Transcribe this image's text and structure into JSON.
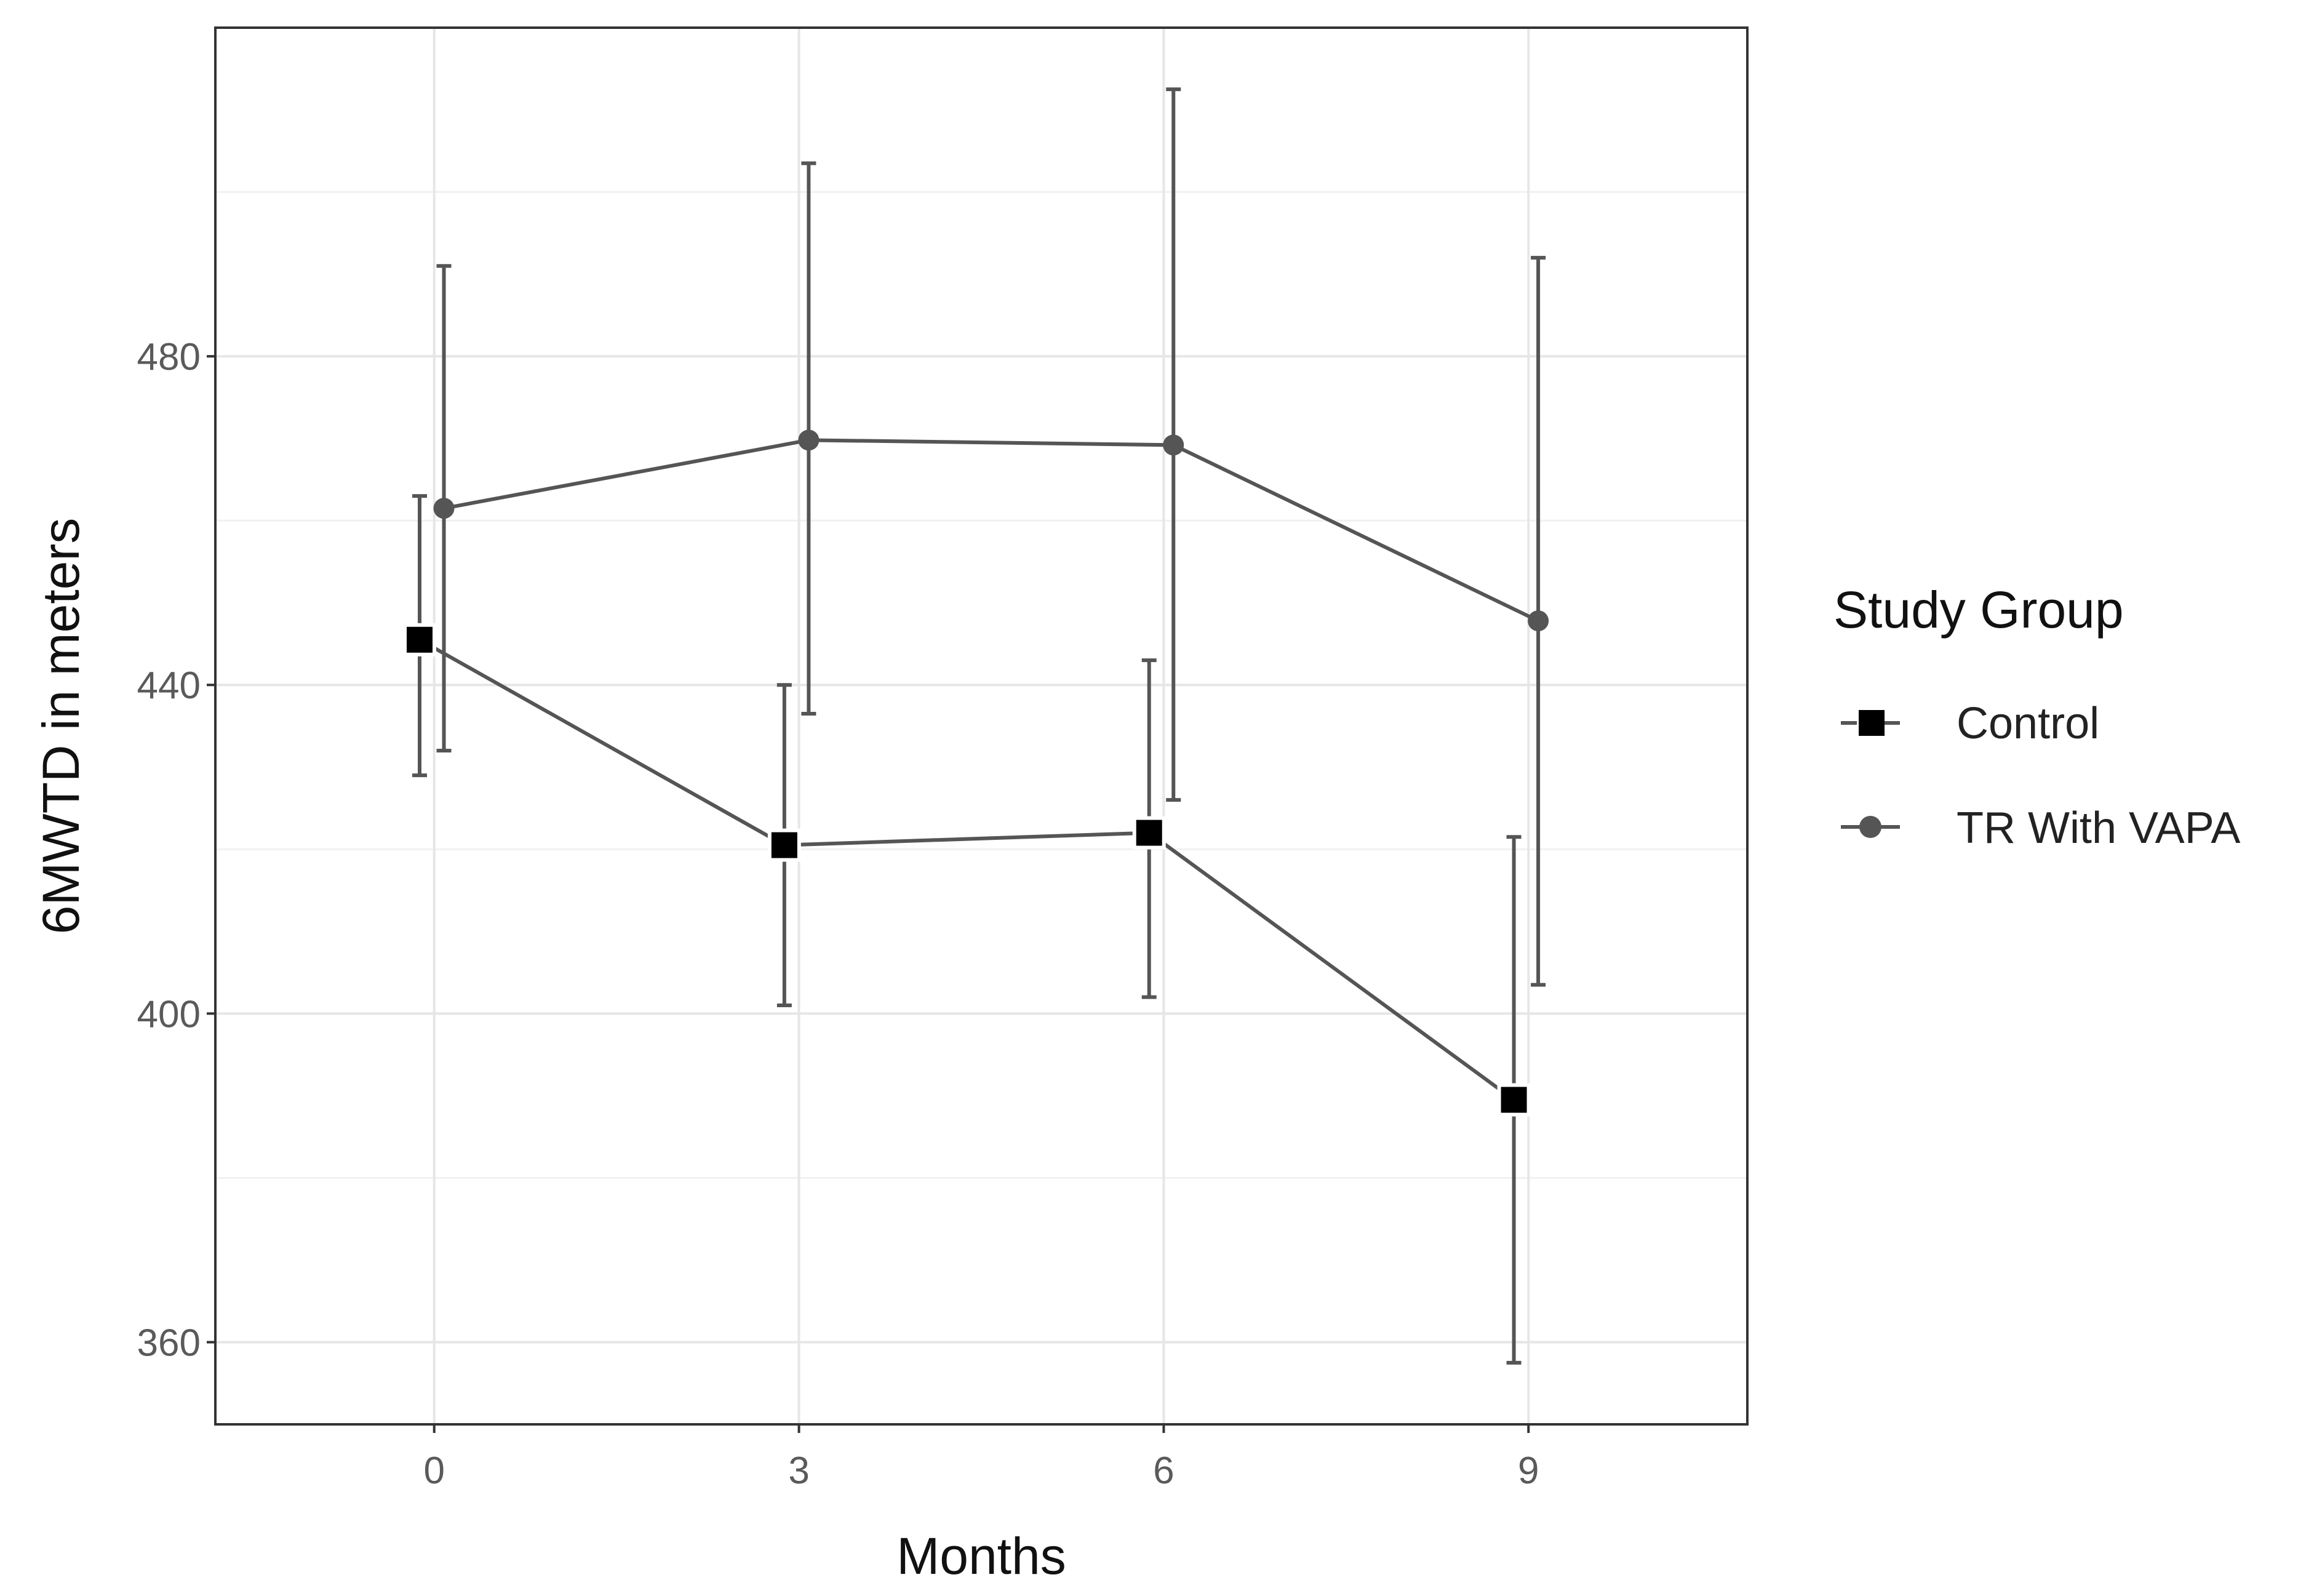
{
  "chart_data": {
    "type": "line",
    "title": "",
    "xlabel": "Months",
    "ylabel": "6MWTD in meters",
    "x": [
      0,
      3,
      6,
      9
    ],
    "x_tick_labels": [
      "0",
      "3",
      "6",
      "9"
    ],
    "y_ticks": [
      360,
      400,
      440,
      480
    ],
    "y_tick_labels": [
      "360",
      "400",
      "440",
      "480"
    ],
    "xlim": [
      -1.8,
      10.8
    ],
    "ylim": [
      350,
      520
    ],
    "grid": true,
    "legend": {
      "title": "Study Group",
      "position": "right"
    },
    "series": [
      {
        "name": "Control",
        "marker": "square",
        "line_style": "solid",
        "color": "#555555",
        "marker_color": "#000000",
        "x_offset": -0.12,
        "values": [
          445.5,
          420.5,
          422.0,
          389.5
        ],
        "error_low": [
          429.0,
          401.0,
          402.0,
          357.5
        ],
        "error_high": [
          463.0,
          440.0,
          443.0,
          421.5
        ]
      },
      {
        "name": "TR With VAPA",
        "marker": "circle",
        "line_style": "solid",
        "color": "#555555",
        "marker_color": "#555555",
        "x_offset": 0.08,
        "values": [
          461.5,
          469.8,
          469.2,
          447.8
        ],
        "error_low": [
          432.0,
          436.5,
          426.0,
          403.5
        ],
        "error_high": [
          491.0,
          503.5,
          512.5,
          492.0
        ]
      }
    ]
  }
}
